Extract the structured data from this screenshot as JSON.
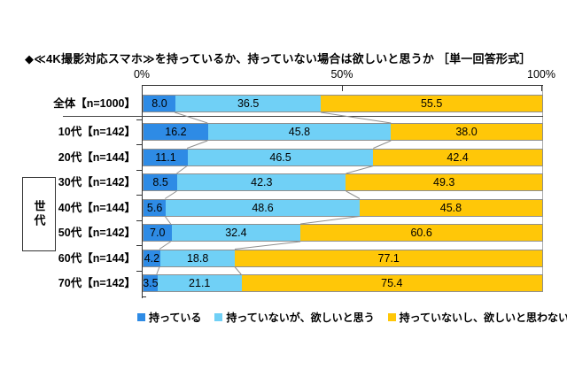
{
  "title": "◆≪4K撮影対応スマホ≫を持っているか、持っていない場合は欲しいと思うか ［単一回答形式］",
  "side_label": "世代",
  "axis_ticks": [
    "0%",
    "50%",
    "100%"
  ],
  "legend": [
    "持っている",
    "持っていないが、欲しいと思う",
    "持っていないし、欲しいと思わない"
  ],
  "colors": {
    "own": "#2E8BE5",
    "want": "#70D0F6",
    "not_want": "#FFC708",
    "axis": "#333333",
    "connector": "#8f8f8f"
  },
  "chart_data": {
    "type": "bar",
    "stacked": true,
    "orientation": "horizontal",
    "title": "◆≪4K撮影対応スマホ≫を持っているか、持っていない場合は欲しいと思うか ［単一回答形式］",
    "categories": [
      "全体【n=1000】",
      "10代【n=142】",
      "20代【n=144】",
      "30代【n=142】",
      "40代【n=144】",
      "50代【n=142】",
      "60代【n=144】",
      "70代【n=142】"
    ],
    "series": [
      {
        "name": "持っている",
        "color": "#2E8BE5",
        "values": [
          8.0,
          16.2,
          11.1,
          8.5,
          5.6,
          7.0,
          4.2,
          3.5
        ]
      },
      {
        "name": "持っていないが、欲しいと思う",
        "color": "#70D0F6",
        "values": [
          36.5,
          45.8,
          46.5,
          42.3,
          48.6,
          32.4,
          18.8,
          21.1
        ]
      },
      {
        "name": "持っていないし、欲しいと思わない",
        "color": "#FFC708",
        "values": [
          55.5,
          38.0,
          42.4,
          49.3,
          45.8,
          60.6,
          77.1,
          75.4
        ]
      }
    ],
    "xlim": [
      0,
      100
    ],
    "x_ticks": [
      0,
      50,
      100
    ],
    "value_format": "one_decimal",
    "group_label": "世代",
    "legend_position": "bottom",
    "grid": false
  }
}
